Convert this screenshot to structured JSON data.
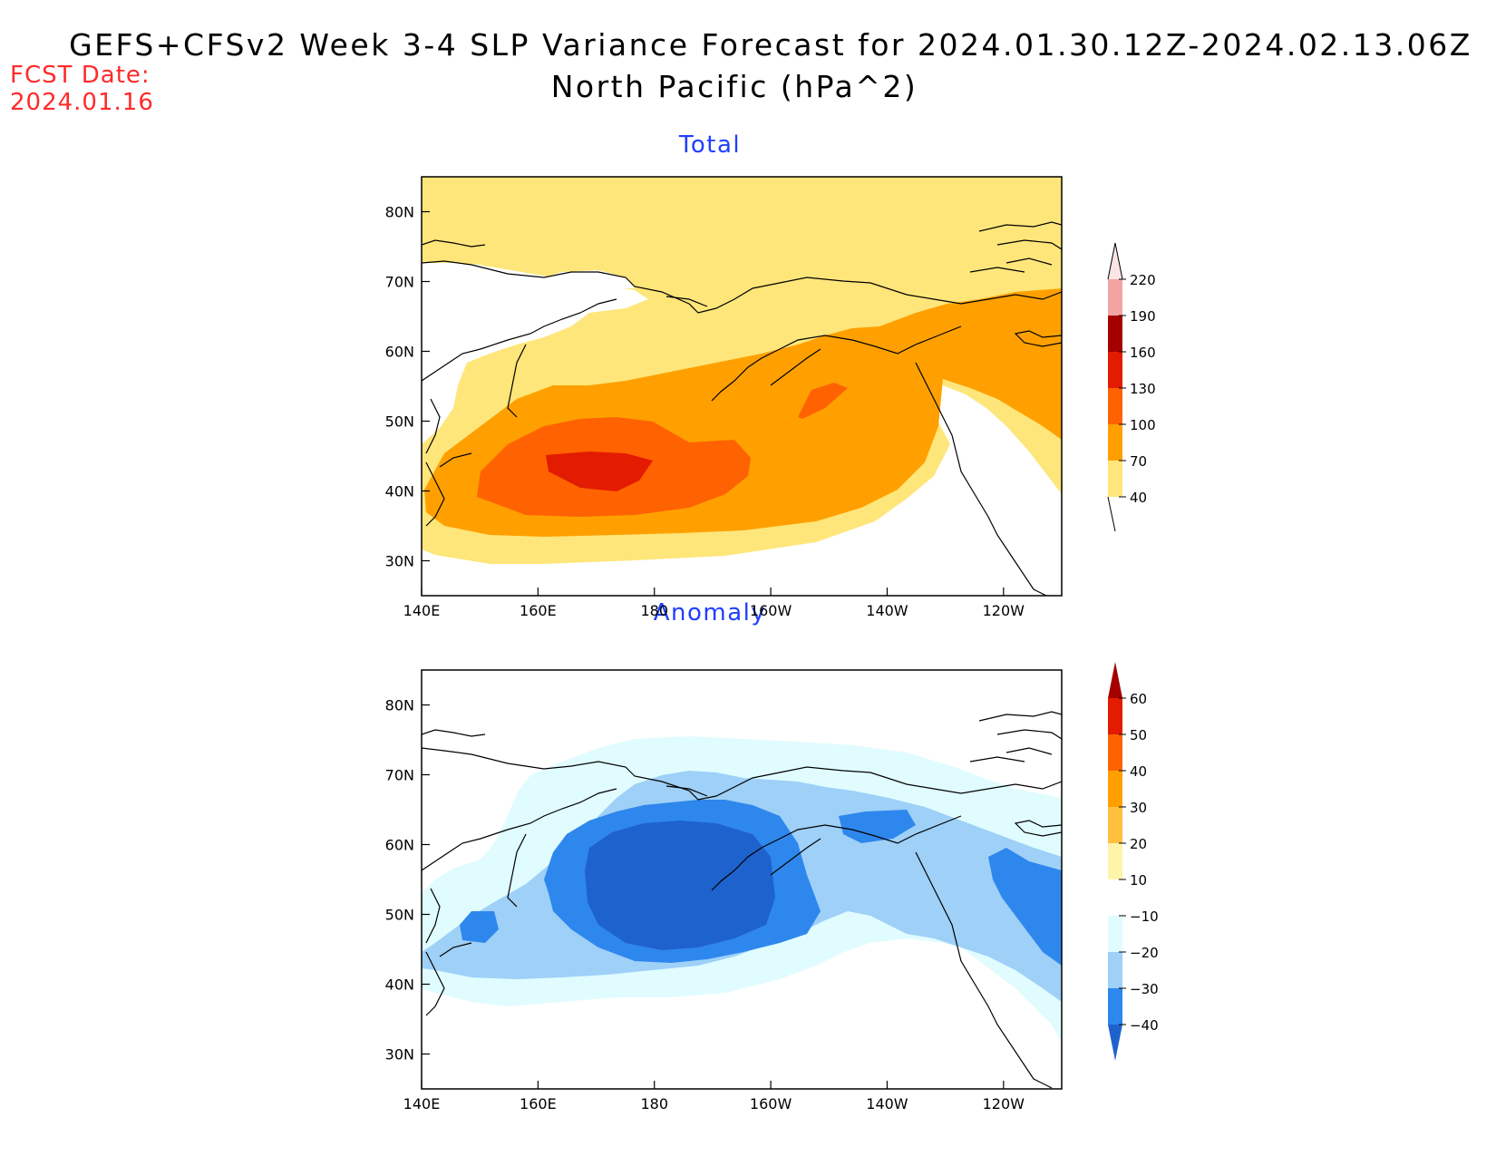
{
  "title_line1": "GEFS+CFSv2 Week 3-4 SLP Variance Forecast for 2024.01.30.12Z-2024.02.13.06Z",
  "title_line2": "North Pacific (hPa^2)",
  "fcst_label": "FCST Date:",
  "fcst_date": "2024.01.16",
  "panels": [
    {
      "title": "Total",
      "lat_ticks": [
        "80N",
        "70N",
        "60N",
        "50N",
        "40N",
        "30N"
      ],
      "lon_ticks": [
        "140E",
        "160E",
        "180",
        "160W",
        "140W",
        "120W"
      ],
      "colorbar": {
        "levels": [
          "40",
          "70",
          "100",
          "130",
          "160",
          "190",
          "220"
        ],
        "colors": [
          "#fee67a",
          "#ffa000",
          "#ff6200",
          "#e31b00",
          "#a50000",
          "#f4a3a3",
          "#fbe6e6"
        ]
      }
    },
    {
      "title": "Anomaly",
      "lat_ticks": [
        "80N",
        "70N",
        "60N",
        "50N",
        "40N",
        "30N"
      ],
      "lon_ticks": [
        "140E",
        "160E",
        "180",
        "160W",
        "140W",
        "120W"
      ],
      "colorbar": {
        "levels": [
          "−40",
          "−30",
          "−20",
          "−10",
          "10",
          "20",
          "30",
          "40",
          "50",
          "60"
        ],
        "colors": [
          "#1e62cd",
          "#2e87ed",
          "#9ed0f8",
          "#e0fcff",
          "#ffffff",
          "#fff5aa",
          "#ffc040",
          "#ffa000",
          "#ff6200",
          "#e31b00",
          "#a50000"
        ]
      }
    }
  ],
  "chart_data": [
    {
      "type": "heatmap",
      "title": "Total",
      "units": "hPa^2",
      "lon_range": [
        "140E",
        "110W"
      ],
      "lat_range": [
        "25N",
        "85N"
      ],
      "levels": [
        40,
        70,
        100,
        130,
        160,
        190,
        220
      ],
      "regions": [
        {
          "class": "40-70",
          "area": "North Pacific 30N-80N background band"
        },
        {
          "class": "70-100",
          "area": "storm track 35N-60N, 145E-130W, extends into Gulf of Alaska and NW Canada"
        },
        {
          "class": "100-130",
          "area": "western Pacific 37N-50N, 150E-165W; small patch near 52N 150W"
        },
        {
          "class": "130-160",
          "area": "max near 43N 170E"
        }
      ]
    },
    {
      "type": "heatmap",
      "title": "Anomaly",
      "units": "hPa^2",
      "lon_range": [
        "140E",
        "110W"
      ],
      "lat_range": [
        "25N",
        "85N"
      ],
      "levels": [
        -40,
        -30,
        -20,
        -10,
        10,
        20,
        30,
        40,
        50,
        60
      ],
      "regions": [
        {
          "class": "-20 to -10",
          "area": "broad band 35N-72N across North Pacific"
        },
        {
          "class": "-30 to -20",
          "area": "40N-68N, 145E-115W"
        },
        {
          "class": "-40 to -30",
          "area": "Bering Sea / central Pacific 45N-65N, 160E-155W; patches near 49N 150E and 50N 115W"
        },
        {
          "class": "< -40",
          "area": "core near 53N 175W"
        }
      ]
    }
  ]
}
